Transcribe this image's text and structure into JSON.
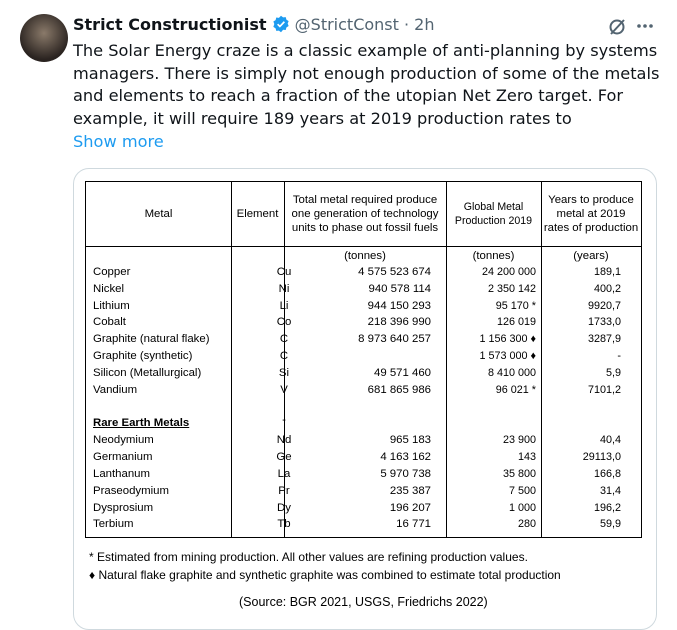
{
  "tweet": {
    "name": "Strict Constructionist",
    "handle": "@StrictConst",
    "time": "2h",
    "text_lines": [
      "The Solar Energy craze is a classic example of anti-planning by systems",
      "managers. There is simply not enough production of some of the metals",
      "and elements to reach a fraction of the utopian Net Zero target. For",
      "example, it will require 189 years at 2019 production rates to"
    ],
    "show_more": "Show more"
  },
  "table": {
    "columns": [
      {
        "header": "Metal"
      },
      {
        "header": "Element"
      },
      {
        "header": "Total metal required produce one generation of technology units to phase out fossil fuels",
        "unit": "(tonnes)"
      },
      {
        "header": "Global Metal Production 2019",
        "unit": "(tonnes)"
      },
      {
        "header": "Years to produce metal at 2019 rates of production",
        "unit": "(years)"
      }
    ],
    "groups": [
      {
        "rows": [
          [
            "Copper",
            "Cu",
            "4 575 523 674",
            "24 200 000",
            "189,1"
          ],
          [
            "Nickel",
            "Ni",
            "940 578 114",
            "2 350 142",
            "400,2"
          ],
          [
            "Lithium",
            "Li",
            "944 150 293",
            "95 170 *",
            "9920,7"
          ],
          [
            "Cobalt",
            "Co",
            "218 396 990",
            "126 019",
            "1733,0"
          ],
          [
            "Graphite (natural flake)",
            "C",
            "8 973 640 257",
            "1 156 300 ♦",
            "3287,9"
          ],
          [
            "Graphite (synthetic)",
            "C",
            null,
            "1 573 000 ♦",
            "-"
          ],
          [
            "Silicon (Metallurgical)",
            "Si",
            "49 571 460",
            "8 410 000",
            "5,9"
          ],
          [
            "Vandium",
            "V",
            "681 865 986",
            "96 021 *",
            "7101,2"
          ]
        ]
      },
      {
        "heading": "Rare Earth Metals",
        "heading_element": "-",
        "rows": [
          [
            "Neodymium",
            "Nd",
            "965 183",
            "23 900",
            "40,4"
          ],
          [
            "Germanium",
            "Ge",
            "4 163 162",
            "143",
            "29113,0"
          ],
          [
            "Lanthanum",
            "La",
            "5 970 738",
            "35 800",
            "166,8"
          ],
          [
            "Praseodymium",
            "Pr",
            "235 387",
            "7 500",
            "31,4"
          ],
          [
            "Dysprosium",
            "Dy",
            "196 207",
            "1 000",
            "196,2"
          ],
          [
            "Terbium",
            "Tb",
            "16 771",
            "280",
            "59,9"
          ]
        ]
      }
    ]
  },
  "footnotes": [
    "* Estimated from mining production.  All other values are refining production values.",
    "♦ Natural flake graphite and synthetic graphite was combined to estimate total production"
  ],
  "source": "(Source: BGR 2021, USGS, Friedrichs 2022)"
}
